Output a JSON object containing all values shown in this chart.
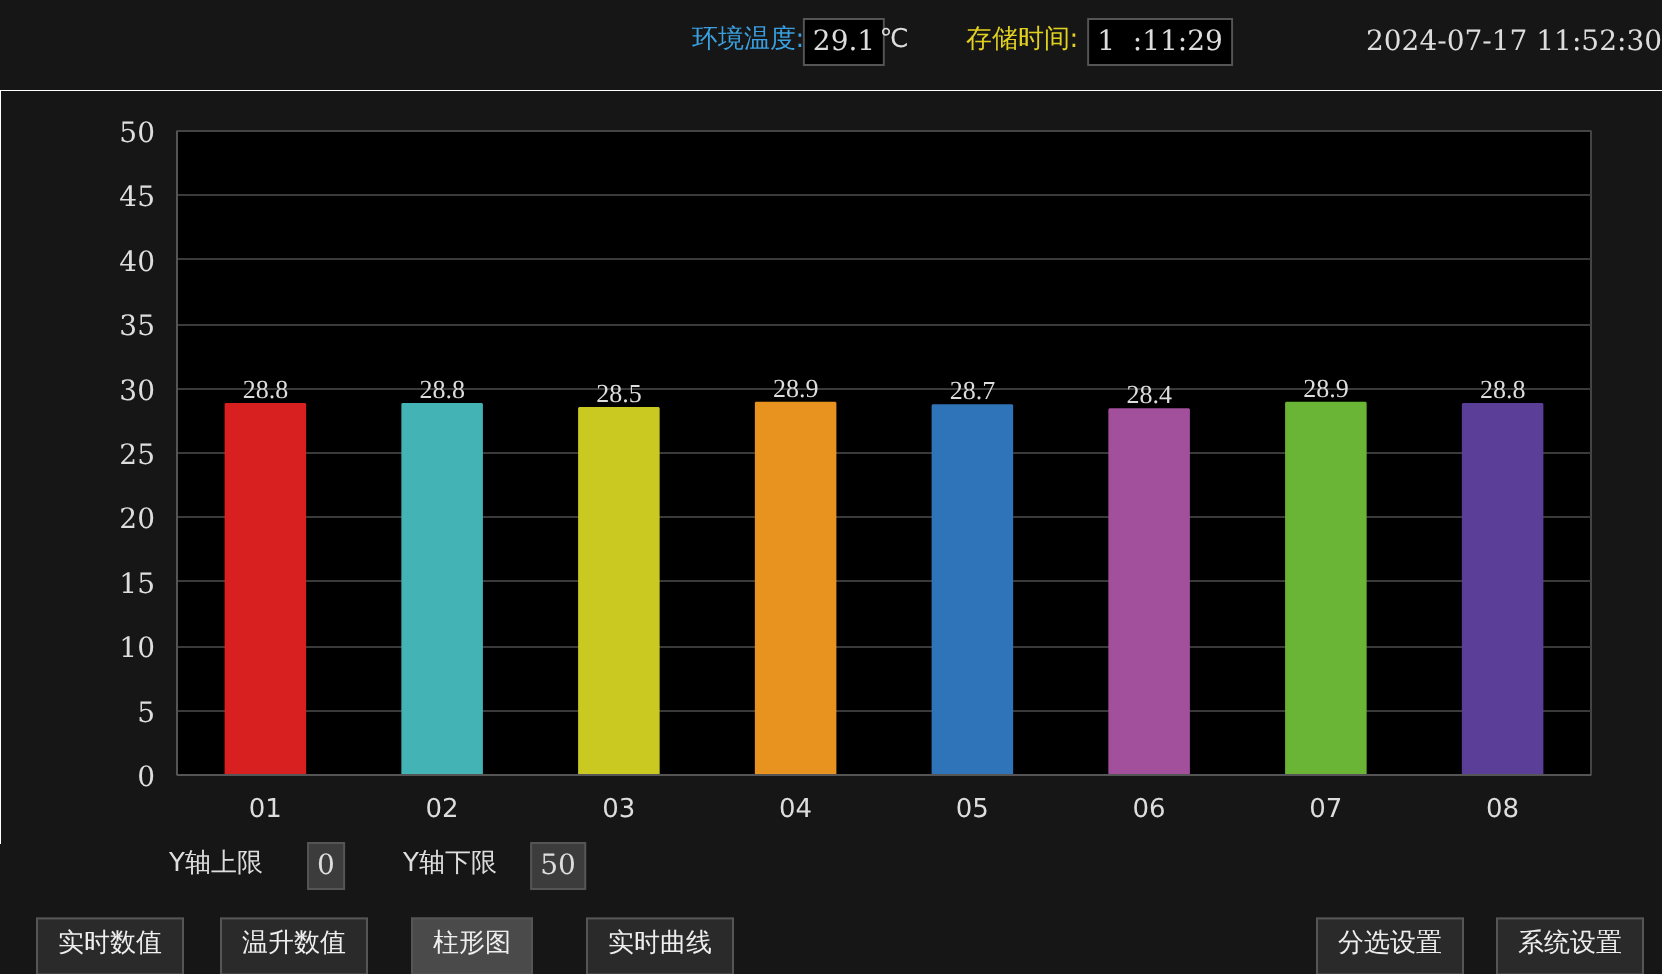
{
  "chart_data": {
    "type": "bar",
    "categories": [
      "01",
      "02",
      "03",
      "04",
      "05",
      "06",
      "07",
      "08"
    ],
    "values": [
      28.8,
      28.8,
      28.5,
      28.9,
      28.7,
      28.4,
      28.9,
      28.8
    ],
    "colors": [
      "#d92020",
      "#43b3b5",
      "#c9c922",
      "#e8921f",
      "#2f74b8",
      "#a24f9c",
      "#6ab536",
      "#5a3e97"
    ],
    "data_labels": true,
    "ylim": [
      0,
      50
    ],
    "yticks": [
      0,
      5,
      10,
      15,
      20,
      25,
      30,
      35,
      40,
      45,
      50
    ],
    "grid": "y",
    "annotations": [
      "环境温度:",
      "29.1",
      "℃",
      "存储时间:",
      "1  :11:29",
      "2024-07-17 11:52:30",
      "Y轴上限",
      "0",
      "Y轴下限",
      "50",
      "实时数值",
      "温升数值",
      "柱形图",
      "实时曲线",
      "分选设置",
      "系统设置"
    ]
  }
}
